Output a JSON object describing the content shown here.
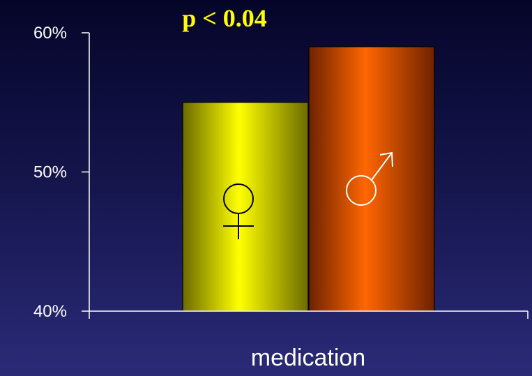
{
  "chart_data": {
    "type": "bar",
    "categories": [
      "medication"
    ],
    "series": [
      {
        "symbol": "female-symbol",
        "color": "#ffff00",
        "color_dark": "#6b6b00",
        "values": [
          55
        ]
      },
      {
        "symbol": "male-symbol",
        "color": "#ff6600",
        "color_dark": "#6e2200",
        "values": [
          59
        ]
      }
    ],
    "xlabel": "medication",
    "ylabel": "",
    "ylim": [
      40,
      60
    ],
    "yticks": [
      {
        "value": 40,
        "label": "40%"
      },
      {
        "value": 50,
        "label": "50%"
      },
      {
        "value": 60,
        "label": "60%"
      }
    ],
    "annotation": "p < 0.04",
    "grid": false
  }
}
